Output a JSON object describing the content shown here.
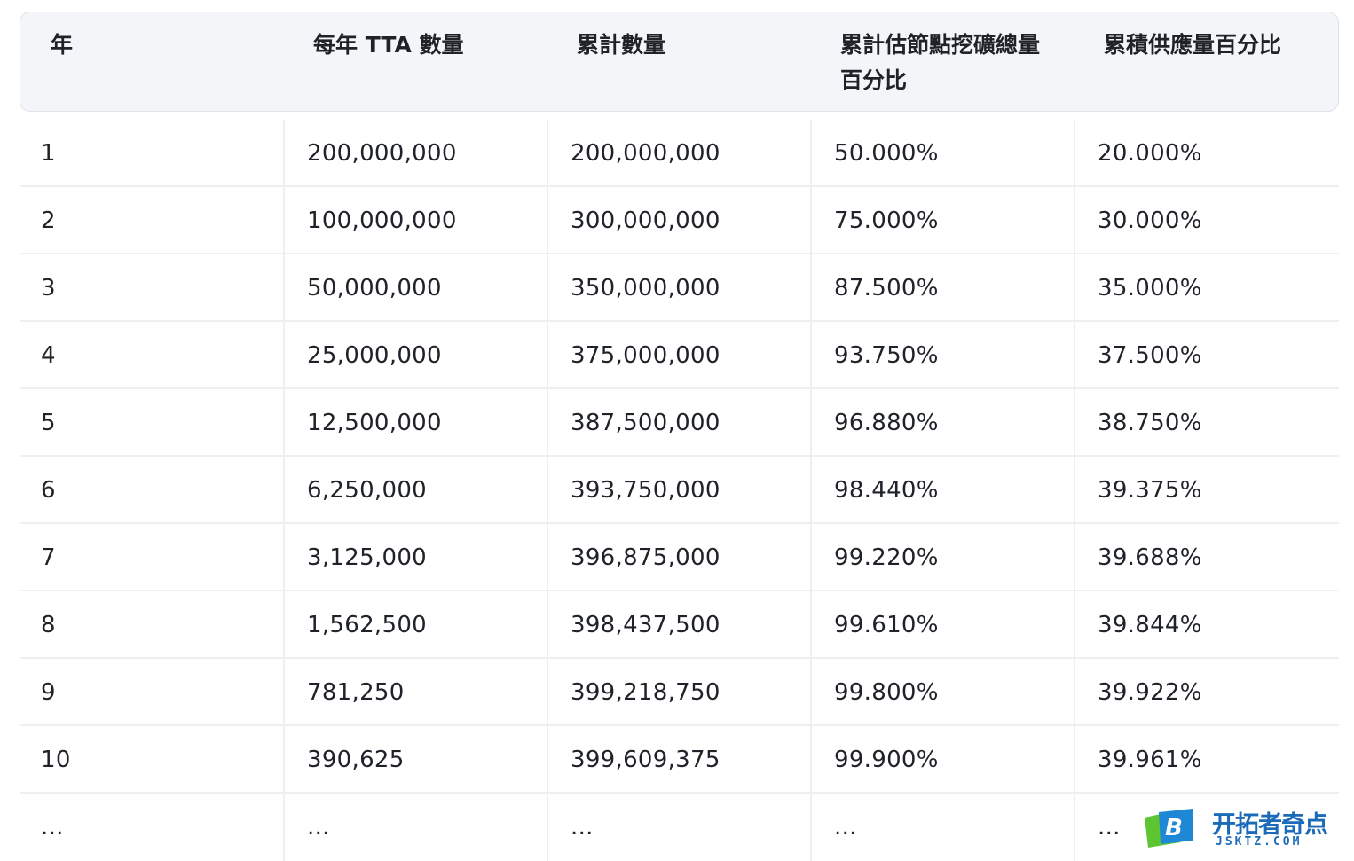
{
  "table": {
    "columns": [
      "年",
      "每年 TTA 數量",
      "累計數量",
      "累計估節點挖礦總量百分比",
      "累積供應量百分比"
    ],
    "rows": [
      [
        "1",
        "200,000,000",
        "200,000,000",
        "50.000%",
        "20.000%"
      ],
      [
        "2",
        "100,000,000",
        "300,000,000",
        "75.000%",
        "30.000%"
      ],
      [
        "3",
        "50,000,000",
        "350,000,000",
        "87.500%",
        "35.000%"
      ],
      [
        "4",
        "25,000,000",
        "375,000,000",
        "93.750%",
        "37.500%"
      ],
      [
        "5",
        "12,500,000",
        "387,500,000",
        "96.880%",
        "38.750%"
      ],
      [
        "6",
        "6,250,000",
        "393,750,000",
        "98.440%",
        "39.375%"
      ],
      [
        "7",
        "3,125,000",
        "396,875,000",
        "99.220%",
        "39.688%"
      ],
      [
        "8",
        "1,562,500",
        "398,437,500",
        "99.610%",
        "39.844%"
      ],
      [
        "9",
        "781,250",
        "399,218,750",
        "99.800%",
        "39.922%"
      ],
      [
        "10",
        "390,625",
        "399,609,375",
        "99.900%",
        "39.961%"
      ],
      [
        "...",
        "...",
        "...",
        "...",
        "..."
      ]
    ]
  },
  "watermark": {
    "title": "开拓者奇点",
    "subtitle": "JSKTZ.COM",
    "logo_letter": "B",
    "colors": {
      "brand_blue": "#1b6bb8",
      "logo_green": "#5cc531",
      "logo_blue": "#1e88d6"
    }
  }
}
